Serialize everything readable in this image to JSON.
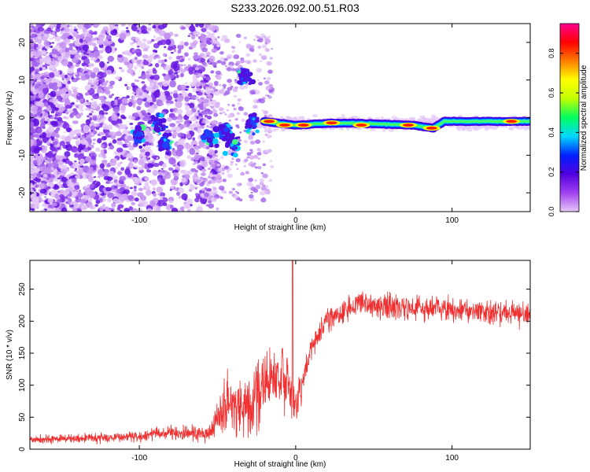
{
  "chart_data": [
    {
      "type": "heatmap",
      "title": "S233.2026.092.00.51.R03",
      "xlabel": "Height of straight line (km)",
      "ylabel": "Frequency (Hz)",
      "xlim": [
        -170,
        150
      ],
      "ylim": [
        -25,
        25
      ],
      "xticks": [
        -100,
        0,
        100
      ],
      "xtick_labels": [
        "-100",
        "0",
        "100"
      ],
      "yticks": [
        -20,
        -10,
        0,
        10,
        20
      ],
      "ytick_labels": [
        "-20",
        "-10",
        "0",
        "10",
        "20"
      ],
      "colorbar": {
        "label": "Normalized spectral amplitude",
        "range": [
          0.0,
          0.95
        ],
        "ticks": [
          0.0,
          0.2,
          0.4,
          0.6,
          0.8
        ],
        "tick_labels": [
          "0.0",
          "0.2",
          "0.4",
          "0.6",
          "0.8"
        ],
        "colors": [
          "#e8c8f8",
          "#a040f0",
          "#5000e0",
          "#0020ff",
          "#00d8ff",
          "#00ff60",
          "#c0ff00",
          "#ffff00",
          "#ff8000",
          "#ff0000",
          "#ff0090"
        ]
      },
      "ridge": [
        {
          "x": -20,
          "f": -1.0
        },
        {
          "x": 0,
          "f": -2.0
        },
        {
          "x": 20,
          "f": -1.5
        },
        {
          "x": 40,
          "f": -1.5
        },
        {
          "x": 60,
          "f": -1.8
        },
        {
          "x": 75,
          "f": -2.0
        },
        {
          "x": 88,
          "f": -2.8
        },
        {
          "x": 95,
          "f": -1.0
        },
        {
          "x": 120,
          "f": -1.0
        },
        {
          "x": 150,
          "f": -1.0
        }
      ],
      "hot_spots": [
        {
          "x": -17,
          "f": -1.0
        },
        {
          "x": -7,
          "f": -2.0
        },
        {
          "x": 5,
          "f": -2.0
        },
        {
          "x": 23,
          "f": -1.4
        },
        {
          "x": 42,
          "f": -2.0
        },
        {
          "x": 72,
          "f": -2.0
        },
        {
          "x": 87,
          "f": -2.8
        },
        {
          "x": 138,
          "f": -1.0
        }
      ],
      "blobs": [
        {
          "x": -100,
          "f": -5.0
        },
        {
          "x": -88,
          "f": -2.0
        },
        {
          "x": -83,
          "f": -7.0
        },
        {
          "x": -55,
          "f": -5.0
        },
        {
          "x": -45,
          "f": -4.0
        },
        {
          "x": -40,
          "f": -7.0
        },
        {
          "x": -33,
          "f": 11.0
        },
        {
          "x": -28,
          "f": -2.0
        }
      ]
    },
    {
      "type": "line",
      "xlabel": "Height of straight line (km)",
      "ylabel": "SNR (10 * v/v)",
      "xlim": [
        -170,
        150
      ],
      "ylim": [
        0,
        295
      ],
      "xticks": [
        -100,
        0,
        100
      ],
      "xtick_labels": [
        "-100",
        "0",
        "100"
      ],
      "yticks": [
        0,
        50,
        100,
        150,
        200,
        250
      ],
      "ytick_labels": [
        "0",
        "50",
        "100",
        "150",
        "200",
        "250"
      ],
      "color": "#f03030",
      "envelope": [
        {
          "x": -170,
          "mean": 15,
          "noise": 8
        },
        {
          "x": -100,
          "mean": 20,
          "noise": 10
        },
        {
          "x": -90,
          "mean": 25,
          "noise": 12
        },
        {
          "x": -55,
          "mean": 25,
          "noise": 15
        },
        {
          "x": -45,
          "mean": 70,
          "noise": 55
        },
        {
          "x": -30,
          "mean": 70,
          "noise": 60
        },
        {
          "x": -20,
          "mean": 100,
          "noise": 60
        },
        {
          "x": -8,
          "mean": 120,
          "noise": 60
        },
        {
          "x": 0,
          "mean": 60,
          "noise": 40
        },
        {
          "x": 10,
          "mean": 160,
          "noise": 25
        },
        {
          "x": 20,
          "mean": 205,
          "noise": 25
        },
        {
          "x": 40,
          "mean": 225,
          "noise": 25
        },
        {
          "x": 80,
          "mean": 220,
          "noise": 25
        },
        {
          "x": 120,
          "mean": 215,
          "noise": 25
        },
        {
          "x": 150,
          "mean": 210,
          "noise": 25
        }
      ]
    }
  ]
}
